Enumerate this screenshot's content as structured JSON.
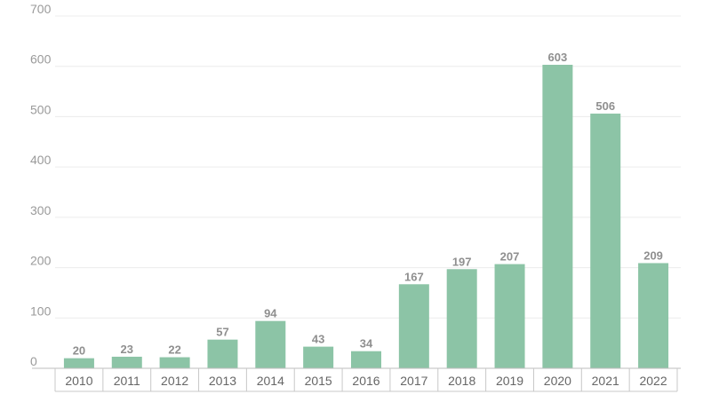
{
  "chart_data": {
    "type": "bar",
    "title": "",
    "xlabel": "",
    "ylabel": "",
    "categories": [
      "2010",
      "2011",
      "2012",
      "2013",
      "2014",
      "2015",
      "2016",
      "2017",
      "2018",
      "2019",
      "2020",
      "2021",
      "2022"
    ],
    "values": [
      20,
      23,
      22,
      57,
      94,
      43,
      34,
      167,
      197,
      207,
      603,
      506,
      209
    ],
    "yticks": [
      0,
      100,
      200,
      300,
      400,
      500,
      600,
      700
    ],
    "ylim": [
      0,
      700
    ],
    "grid": true,
    "legend": "none",
    "bar_color": "#8cc4a6"
  }
}
